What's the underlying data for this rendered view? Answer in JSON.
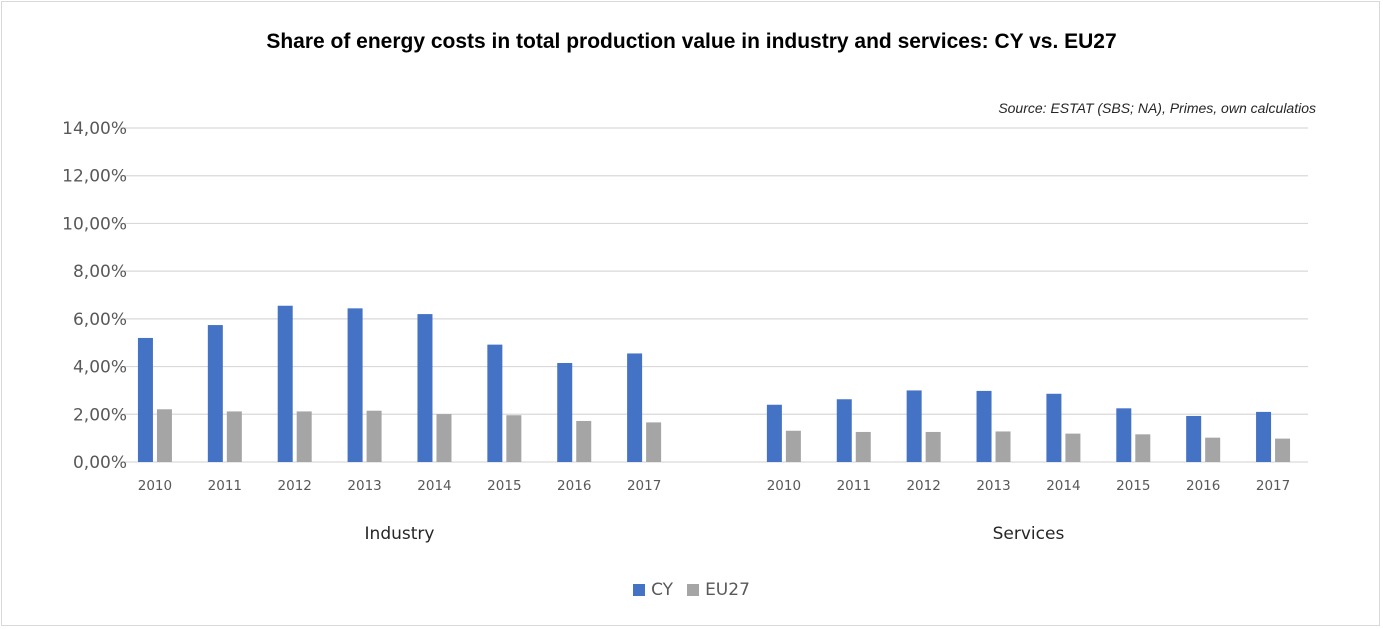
{
  "chart_data": {
    "type": "bar",
    "title": "Share of energy costs in total production value in industry and services: CY vs. EU27",
    "source_note": "Source: ESTAT (SBS; NA), Primes, own calculatios",
    "xlabel": "",
    "ylabel": "",
    "ylim": [
      0,
      14
    ],
    "y_ticks": [
      "0,00%",
      "2,00%",
      "4,00%",
      "6,00%",
      "8,00%",
      "10,00%",
      "12,00%",
      "14,00%"
    ],
    "y_tick_values": [
      0,
      2,
      4,
      6,
      8,
      10,
      12,
      14
    ],
    "grid": true,
    "legend_position": "bottom",
    "colors": {
      "CY": "#4472c4",
      "EU27": "#a5a5a5"
    },
    "groups": [
      {
        "name": "Industry",
        "categories": [
          "2010",
          "2011",
          "2012",
          "2013",
          "2014",
          "2015",
          "2016",
          "2017"
        ],
        "series": [
          {
            "name": "CY",
            "values": [
              5.2,
              5.74,
              6.55,
              6.44,
              6.2,
              4.92,
              4.15,
              4.55
            ]
          },
          {
            "name": "EU27",
            "values": [
              2.21,
              2.12,
              2.12,
              2.15,
              2.01,
              1.96,
              1.72,
              1.66
            ]
          }
        ]
      },
      {
        "name": "Services",
        "categories": [
          "2010",
          "2011",
          "2012",
          "2013",
          "2014",
          "2015",
          "2016",
          "2017"
        ],
        "series": [
          {
            "name": "CY",
            "values": [
              2.4,
              2.63,
              3.0,
              2.98,
              2.86,
              2.25,
              1.93,
              2.1
            ]
          },
          {
            "name": "EU27",
            "values": [
              1.31,
              1.26,
              1.26,
              1.28,
              1.19,
              1.16,
              1.02,
              0.98
            ]
          }
        ]
      }
    ],
    "legend": [
      "CY",
      "EU27"
    ]
  }
}
